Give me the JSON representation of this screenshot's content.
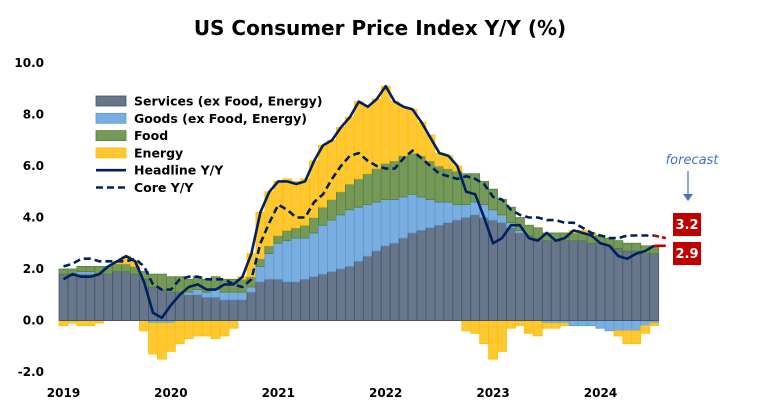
{
  "chart_data": {
    "type": "bar",
    "stacked": true,
    "title": "US Consumer Price Index Y/Y (%)",
    "xlabel": "",
    "ylabel": "",
    "ylim": [
      -2.0,
      10.0
    ],
    "yticks": [
      "10.0",
      "8.0",
      "6.0",
      "4.0",
      "2.0",
      "0.0",
      "-2.0"
    ],
    "xticks": [
      "2019",
      "2020",
      "2021",
      "2022",
      "2023",
      "2024"
    ],
    "start_month": "2019-06",
    "end_month": "2024-12",
    "grid": false,
    "legend_placement": "top-left",
    "series": [
      {
        "name": "Services (ex Food, Energy)",
        "type": "bar",
        "color": "#67768a",
        "values": [
          1.8,
          1.8,
          1.8,
          1.8,
          1.8,
          1.8,
          1.9,
          1.9,
          1.8,
          1.6,
          1.3,
          1.2,
          1.1,
          1.1,
          1.0,
          1.0,
          0.9,
          0.9,
          0.8,
          0.8,
          0.8,
          1.1,
          1.5,
          1.6,
          1.6,
          1.5,
          1.5,
          1.6,
          1.7,
          1.8,
          1.9,
          2.0,
          2.1,
          2.3,
          2.5,
          2.7,
          2.9,
          3.0,
          3.2,
          3.4,
          3.5,
          3.6,
          3.7,
          3.8,
          3.9,
          4.0,
          4.1,
          4.0,
          3.9,
          3.8,
          3.6,
          3.4,
          3.3,
          3.2,
          3.1,
          3.1,
          3.1,
          3.1,
          3.1,
          3.0,
          3.0,
          2.9,
          2.8,
          2.7,
          2.7,
          2.6,
          2.6
        ]
      },
      {
        "name": "Goods (ex Food, Energy)",
        "type": "bar",
        "color": "#7aaee0",
        "values": [
          0.0,
          0.0,
          0.1,
          0.1,
          0.0,
          0.0,
          0.0,
          0.0,
          0.0,
          0.0,
          -0.1,
          -0.1,
          -0.1,
          0.0,
          0.1,
          0.2,
          0.2,
          0.3,
          0.3,
          0.3,
          0.3,
          0.2,
          0.6,
          1.0,
          1.4,
          1.6,
          1.7,
          1.6,
          1.7,
          1.9,
          2.0,
          2.1,
          2.2,
          2.1,
          2.0,
          1.9,
          1.8,
          1.7,
          1.6,
          1.5,
          1.3,
          1.1,
          0.9,
          0.8,
          0.6,
          0.5,
          0.5,
          0.5,
          0.4,
          0.3,
          0.2,
          0.1,
          0.0,
          0.0,
          -0.1,
          -0.1,
          -0.1,
          -0.2,
          -0.2,
          -0.2,
          -0.3,
          -0.4,
          -0.4,
          -0.4,
          -0.4,
          -0.2,
          -0.1
        ]
      },
      {
        "name": "Food",
        "type": "bar",
        "color": "#76995a",
        "values": [
          0.2,
          0.2,
          0.2,
          0.2,
          0.3,
          0.3,
          0.3,
          0.3,
          0.3,
          0.3,
          0.5,
          0.6,
          0.6,
          0.6,
          0.5,
          0.5,
          0.5,
          0.5,
          0.5,
          0.5,
          0.5,
          0.4,
          0.3,
          0.3,
          0.3,
          0.4,
          0.4,
          0.5,
          0.6,
          0.7,
          0.8,
          0.9,
          1.0,
          1.1,
          1.2,
          1.3,
          1.4,
          1.5,
          1.6,
          1.6,
          1.6,
          1.5,
          1.4,
          1.3,
          1.3,
          1.2,
          1.1,
          0.9,
          0.8,
          0.6,
          0.6,
          0.5,
          0.4,
          0.4,
          0.3,
          0.3,
          0.3,
          0.3,
          0.3,
          0.3,
          0.3,
          0.3,
          0.3,
          0.3,
          0.3,
          0.3,
          0.3
        ]
      },
      {
        "name": "Energy",
        "type": "bar",
        "color": "#ffc832",
        "values": [
          -0.2,
          -0.1,
          -0.2,
          -0.2,
          -0.1,
          0.0,
          0.1,
          0.3,
          0.2,
          -0.4,
          -1.2,
          -1.4,
          -1.1,
          -0.9,
          -0.7,
          -0.6,
          -0.6,
          -0.7,
          -0.6,
          -0.3,
          0.1,
          0.9,
          1.8,
          2.1,
          2.1,
          2.0,
          1.8,
          1.8,
          2.2,
          2.4,
          2.3,
          2.5,
          2.6,
          3.0,
          2.6,
          2.7,
          3.0,
          2.3,
          1.9,
          1.7,
          1.3,
          1.0,
          0.5,
          0.5,
          0.2,
          -0.4,
          -0.5,
          -0.9,
          -1.5,
          -1.2,
          -0.3,
          -0.2,
          -0.5,
          -0.6,
          -0.2,
          -0.2,
          -0.1,
          0.1,
          0.1,
          0.1,
          0.0,
          0.0,
          -0.2,
          -0.5,
          -0.5,
          -0.3,
          -0.1
        ]
      },
      {
        "name": "Headline Y/Y",
        "type": "line",
        "style": "solid",
        "color": "#002060",
        "values": [
          1.6,
          1.8,
          1.7,
          1.7,
          1.8,
          2.1,
          2.3,
          2.5,
          2.3,
          1.5,
          0.3,
          0.1,
          0.6,
          1.0,
          1.3,
          1.4,
          1.2,
          1.2,
          1.4,
          1.4,
          1.7,
          2.6,
          4.2,
          5.0,
          5.4,
          5.4,
          5.3,
          5.4,
          6.2,
          6.8,
          7.0,
          7.5,
          7.9,
          8.5,
          8.3,
          8.6,
          9.1,
          8.5,
          8.3,
          8.2,
          7.7,
          7.1,
          6.5,
          6.4,
          6.0,
          5.0,
          4.9,
          4.0,
          3.0,
          3.2,
          3.7,
          3.7,
          3.2,
          3.1,
          3.4,
          3.1,
          3.2,
          3.5,
          3.4,
          3.3,
          3.0,
          2.9,
          2.5,
          2.4,
          2.6,
          2.7,
          2.9
        ]
      },
      {
        "name": "Core Y/Y",
        "type": "line",
        "style": "dashed",
        "color": "#002060",
        "values": [
          2.1,
          2.2,
          2.4,
          2.4,
          2.3,
          2.3,
          2.3,
          2.3,
          2.4,
          2.1,
          1.4,
          1.2,
          1.2,
          1.6,
          1.7,
          1.7,
          1.6,
          1.6,
          1.6,
          1.4,
          1.3,
          1.6,
          3.0,
          3.8,
          4.5,
          4.3,
          4.0,
          4.0,
          4.6,
          4.9,
          5.5,
          6.0,
          6.4,
          6.5,
          6.2,
          6.0,
          5.9,
          5.9,
          6.3,
          6.6,
          6.3,
          6.0,
          5.7,
          5.6,
          5.5,
          5.6,
          5.5,
          5.3,
          4.8,
          4.7,
          4.3,
          4.1,
          4.0,
          4.0,
          3.9,
          3.9,
          3.8,
          3.8,
          3.6,
          3.4,
          3.3,
          3.2,
          3.2,
          3.3,
          3.3,
          3.3,
          3.3
        ]
      }
    ],
    "forecast": {
      "label": "forecast",
      "color": "#c00000",
      "core": 3.2,
      "headline": 2.9,
      "core_label": "3.2",
      "headline_label": "2.9"
    }
  }
}
